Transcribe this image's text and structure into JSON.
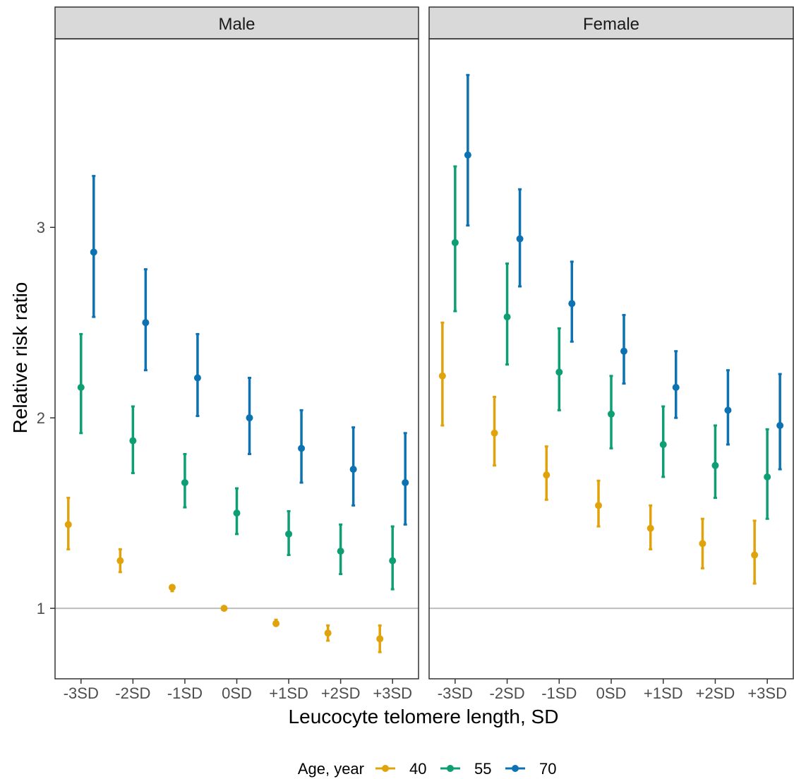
{
  "chart_data": {
    "type": "pointrange",
    "xlabel": "Leucocyte telomere length, SD",
    "ylabel": "Relative risk ratio",
    "categories": [
      "-3SD",
      "-2SD",
      "-1SD",
      "0SD",
      "+1SD",
      "+2SD",
      "+3SD"
    ],
    "ylim": [
      0.63,
      3.99
    ],
    "yticks": [
      1,
      2,
      3
    ],
    "reference_line": 1,
    "grid": false,
    "legend": {
      "title": "Age, year",
      "placement": "bottom",
      "entries": [
        "40",
        "55",
        "70"
      ]
    },
    "colors": {
      "40": "#E1A30B",
      "55": "#0E9E74",
      "70": "#0C72B2"
    },
    "panels": [
      {
        "name": "Male",
        "series": [
          {
            "name": "40",
            "values": [
              1.44,
              1.25,
              1.11,
              1.0,
              0.92,
              0.87,
              0.84
            ],
            "lower": [
              1.31,
              1.19,
              1.09,
              1.0,
              0.91,
              0.83,
              0.77
            ],
            "upper": [
              1.58,
              1.31,
              1.12,
              1.0,
              0.94,
              0.91,
              0.91
            ]
          },
          {
            "name": "55",
            "values": [
              2.16,
              1.88,
              1.66,
              1.5,
              1.39,
              1.3,
              1.25
            ],
            "lower": [
              1.92,
              1.71,
              1.53,
              1.39,
              1.28,
              1.18,
              1.1
            ],
            "upper": [
              2.44,
              2.06,
              1.81,
              1.63,
              1.51,
              1.44,
              1.43
            ]
          },
          {
            "name": "70",
            "values": [
              2.87,
              2.5,
              2.21,
              2.0,
              1.84,
              1.73,
              1.66
            ],
            "lower": [
              2.53,
              2.25,
              2.01,
              1.81,
              1.66,
              1.54,
              1.44
            ],
            "upper": [
              3.27,
              2.78,
              2.44,
              2.21,
              2.04,
              1.95,
              1.92
            ]
          }
        ]
      },
      {
        "name": "Female",
        "series": [
          {
            "name": "40",
            "values": [
              2.22,
              1.92,
              1.7,
              1.54,
              1.42,
              1.34,
              1.28
            ],
            "lower": [
              1.96,
              1.75,
              1.57,
              1.43,
              1.31,
              1.21,
              1.13
            ],
            "upper": [
              2.5,
              2.11,
              1.85,
              1.67,
              1.54,
              1.47,
              1.46
            ]
          },
          {
            "name": "55",
            "values": [
              2.92,
              2.53,
              2.24,
              2.02,
              1.86,
              1.75,
              1.69
            ],
            "lower": [
              2.56,
              2.28,
              2.04,
              1.84,
              1.69,
              1.58,
              1.47
            ],
            "upper": [
              3.32,
              2.81,
              2.47,
              2.22,
              2.06,
              1.96,
              1.94
            ]
          },
          {
            "name": "70",
            "values": [
              3.38,
              2.94,
              2.6,
              2.35,
              2.16,
              2.04,
              1.96
            ],
            "lower": [
              3.01,
              2.69,
              2.4,
              2.18,
              2.0,
              1.86,
              1.73
            ],
            "upper": [
              3.8,
              3.2,
              2.82,
              2.54,
              2.35,
              2.25,
              2.23
            ]
          }
        ]
      }
    ]
  }
}
